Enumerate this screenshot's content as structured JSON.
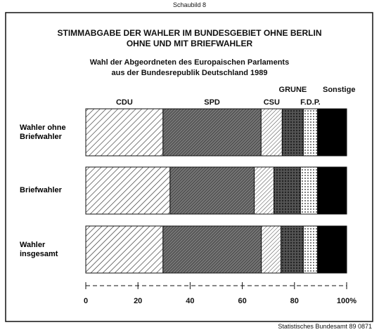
{
  "header": "Schaubild 8",
  "chart_data": {
    "type": "stacked-barh",
    "title": "STIMMABGABE DER WAHLER IM BUNDESGEBIET OHNE BERLIN\nOHNE UND MIT BRIEFWAHLER",
    "subtitle": "Wahl der Abgeordneten des Europaischen Parlaments\naus der Bundesrepublik Deutschland  1989",
    "categories": [
      "Wahler ohne\nBriefwahler",
      "Briefwahler",
      "Wahler\ninsgesamt"
    ],
    "series": [
      {
        "name": "CDU",
        "color": "#222",
        "values": [
          29.6,
          32.3,
          29.6
        ]
      },
      {
        "name": "SPD",
        "color": "#333",
        "values": [
          37.6,
          32.3,
          37.7
        ]
      },
      {
        "name": "CSU",
        "color": "#444",
        "values": [
          8.1,
          7.5,
          7.5
        ]
      },
      {
        "name": "GRUNE",
        "color": "#222",
        "values": [
          8.1,
          10.2,
          8.6
        ]
      },
      {
        "name": "F.D.P.",
        "color": "#222",
        "values": [
          5.4,
          6.5,
          5.4
        ]
      },
      {
        "name": "Sonstige",
        "color": "#000",
        "values": [
          11.2,
          11.2,
          11.2
        ]
      }
    ],
    "xlim": [
      0,
      100
    ],
    "xticks": [
      0,
      20,
      40,
      60,
      80,
      {
        "value": 100,
        "label": "100%"
      }
    ]
  },
  "source": "Statistisches Bundesamt 89 0871"
}
